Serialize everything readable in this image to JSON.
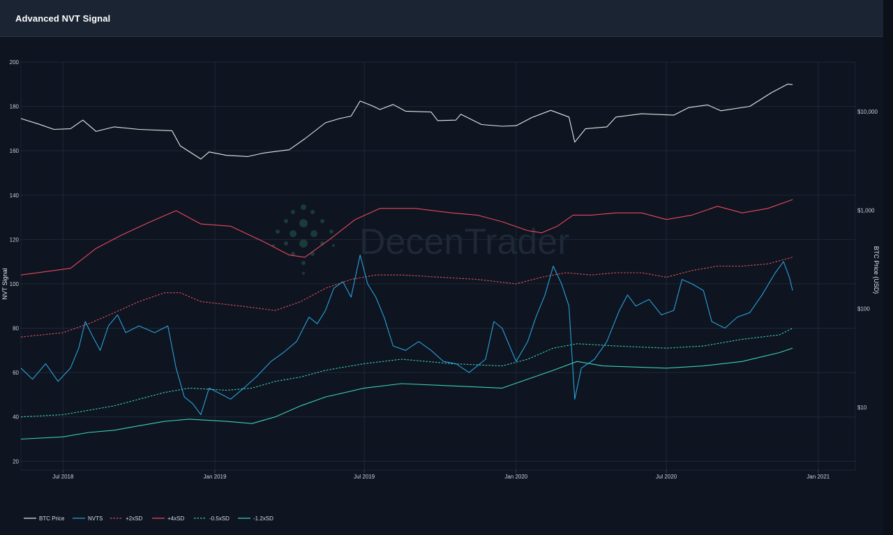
{
  "header": {
    "title": "Advanced NVT Signal"
  },
  "colors": {
    "background": "#0e1420",
    "header": "#1b2433",
    "grid": "#1f2938",
    "btc_price": "#e8e8e8",
    "nvts": "#2aa2dc",
    "plus2sd": "#e0525e",
    "plus4sd": "#e84a5f",
    "minus05sd": "#3fd1b6",
    "minus12sd": "#3fd1b6"
  },
  "watermark": {
    "text": "DecenTrader"
  },
  "chart_data": {
    "type": "line",
    "x_axis": {
      "range": [
        "2018-05-11",
        "2021-02-15"
      ],
      "ticks": [
        {
          "date": "2018-07-01",
          "label": "Jul 2018"
        },
        {
          "date": "2019-01-01",
          "label": "Jan 2019"
        },
        {
          "date": "2019-07-01",
          "label": "Jul 2019"
        },
        {
          "date": "2020-01-01",
          "label": "Jan 2020"
        },
        {
          "date": "2020-07-01",
          "label": "Jul 2020"
        },
        {
          "date": "2021-01-01",
          "label": "Jan 2021"
        }
      ]
    },
    "y_axis_left": {
      "title": "NVT Signal",
      "range": [
        16,
        200
      ],
      "ticks": [
        200,
        180,
        160,
        140,
        120,
        100,
        80,
        60,
        40,
        20
      ]
    },
    "y_axis_right": {
      "title": "BTC Price (USD)",
      "scale": "log",
      "ticks": [
        {
          "value": 10000,
          "label": "$10,000"
        },
        {
          "value": 1000,
          "label": "$1,000"
        },
        {
          "value": 100,
          "label": "$100"
        },
        {
          "value": 10,
          "label": "$10"
        }
      ]
    },
    "grid": true,
    "legend_position": "bottom-left",
    "series": [
      {
        "name": "BTC Price",
        "axis": "right",
        "style": "solid",
        "color": "#e8e8e8",
        "points": [
          [
            "2018-05-11",
            8500
          ],
          [
            "2018-06-01",
            7500
          ],
          [
            "2018-06-20",
            6600
          ],
          [
            "2018-07-10",
            6700
          ],
          [
            "2018-07-25",
            8200
          ],
          [
            "2018-08-10",
            6300
          ],
          [
            "2018-09-01",
            7000
          ],
          [
            "2018-10-01",
            6600
          ],
          [
            "2018-11-10",
            6400
          ],
          [
            "2018-11-20",
            4500
          ],
          [
            "2018-12-15",
            3300
          ],
          [
            "2018-12-25",
            3900
          ],
          [
            "2019-01-15",
            3600
          ],
          [
            "2019-02-10",
            3500
          ],
          [
            "2019-03-01",
            3800
          ],
          [
            "2019-04-01",
            4100
          ],
          [
            "2019-04-20",
            5300
          ],
          [
            "2019-05-15",
            7700
          ],
          [
            "2019-06-01",
            8500
          ],
          [
            "2019-06-15",
            9000
          ],
          [
            "2019-06-26",
            12800
          ],
          [
            "2019-07-10",
            11500
          ],
          [
            "2019-07-20",
            10500
          ],
          [
            "2019-08-05",
            11800
          ],
          [
            "2019-08-20",
            10100
          ],
          [
            "2019-09-20",
            9900
          ],
          [
            "2019-09-28",
            8100
          ],
          [
            "2019-10-20",
            8200
          ],
          [
            "2019-10-26",
            9400
          ],
          [
            "2019-11-20",
            7400
          ],
          [
            "2019-12-15",
            7100
          ],
          [
            "2020-01-01",
            7200
          ],
          [
            "2020-01-20",
            8700
          ],
          [
            "2020-02-12",
            10300
          ],
          [
            "2020-03-05",
            8800
          ],
          [
            "2020-03-12",
            4900
          ],
          [
            "2020-03-25",
            6700
          ],
          [
            "2020-04-20",
            7000
          ],
          [
            "2020-05-01",
            8800
          ],
          [
            "2020-06-01",
            9500
          ],
          [
            "2020-07-10",
            9200
          ],
          [
            "2020-07-28",
            11000
          ],
          [
            "2020-08-20",
            11700
          ],
          [
            "2020-09-05",
            10200
          ],
          [
            "2020-10-10",
            11300
          ],
          [
            "2020-10-21",
            12900
          ],
          [
            "2020-11-05",
            15500
          ],
          [
            "2020-11-25",
            19000
          ],
          [
            "2020-12-01",
            18800
          ]
        ]
      },
      {
        "name": "NVTS",
        "axis": "left",
        "style": "solid",
        "color": "#2aa2dc",
        "points": [
          [
            "2018-05-11",
            62
          ],
          [
            "2018-05-25",
            57
          ],
          [
            "2018-06-10",
            64
          ],
          [
            "2018-06-25",
            56
          ],
          [
            "2018-07-10",
            62
          ],
          [
            "2018-07-20",
            71
          ],
          [
            "2018-07-28",
            83
          ],
          [
            "2018-08-05",
            77
          ],
          [
            "2018-08-15",
            70
          ],
          [
            "2018-08-25",
            81
          ],
          [
            "2018-09-05",
            86
          ],
          [
            "2018-09-15",
            78
          ],
          [
            "2018-10-01",
            81
          ],
          [
            "2018-10-20",
            78
          ],
          [
            "2018-11-05",
            81
          ],
          [
            "2018-11-15",
            62
          ],
          [
            "2018-11-25",
            49
          ],
          [
            "2018-12-05",
            46
          ],
          [
            "2018-12-15",
            41
          ],
          [
            "2018-12-25",
            53
          ],
          [
            "2019-01-10",
            50
          ],
          [
            "2019-01-20",
            48
          ],
          [
            "2019-02-05",
            53
          ],
          [
            "2019-02-20",
            58
          ],
          [
            "2019-03-10",
            65
          ],
          [
            "2019-03-25",
            69
          ],
          [
            "2019-04-10",
            74
          ],
          [
            "2019-04-25",
            85
          ],
          [
            "2019-05-05",
            82
          ],
          [
            "2019-05-15",
            88
          ],
          [
            "2019-05-25",
            98
          ],
          [
            "2019-06-05",
            101
          ],
          [
            "2019-06-15",
            94
          ],
          [
            "2019-06-26",
            113
          ],
          [
            "2019-07-05",
            100
          ],
          [
            "2019-07-15",
            94
          ],
          [
            "2019-07-25",
            85
          ],
          [
            "2019-08-05",
            72
          ],
          [
            "2019-08-20",
            70
          ],
          [
            "2019-09-05",
            74
          ],
          [
            "2019-09-20",
            70
          ],
          [
            "2019-10-05",
            65
          ],
          [
            "2019-10-20",
            64
          ],
          [
            "2019-11-05",
            60
          ],
          [
            "2019-11-25",
            66
          ],
          [
            "2019-12-05",
            83
          ],
          [
            "2019-12-15",
            80
          ],
          [
            "2020-01-01",
            65
          ],
          [
            "2020-01-15",
            74
          ],
          [
            "2020-01-25",
            85
          ],
          [
            "2020-02-05",
            95
          ],
          [
            "2020-02-15",
            108
          ],
          [
            "2020-02-25",
            100
          ],
          [
            "2020-03-05",
            90
          ],
          [
            "2020-03-12",
            48
          ],
          [
            "2020-03-20",
            62
          ],
          [
            "2020-04-05",
            66
          ],
          [
            "2020-04-20",
            74
          ],
          [
            "2020-05-05",
            88
          ],
          [
            "2020-05-15",
            95
          ],
          [
            "2020-05-25",
            90
          ],
          [
            "2020-06-10",
            93
          ],
          [
            "2020-06-25",
            86
          ],
          [
            "2020-07-10",
            88
          ],
          [
            "2020-07-20",
            102
          ],
          [
            "2020-08-01",
            100
          ],
          [
            "2020-08-15",
            97
          ],
          [
            "2020-08-25",
            83
          ],
          [
            "2020-09-10",
            80
          ],
          [
            "2020-09-25",
            85
          ],
          [
            "2020-10-10",
            87
          ],
          [
            "2020-10-25",
            95
          ],
          [
            "2020-11-10",
            105
          ],
          [
            "2020-11-20",
            110
          ],
          [
            "2020-11-27",
            103
          ],
          [
            "2020-12-01",
            97
          ]
        ]
      },
      {
        "name": "+2xSD",
        "axis": "left",
        "style": "dashed",
        "color": "#e0525e",
        "points": [
          [
            "2018-05-11",
            76
          ],
          [
            "2018-07-01",
            78
          ],
          [
            "2018-08-01",
            82
          ],
          [
            "2018-09-01",
            87
          ],
          [
            "2018-10-01",
            92
          ],
          [
            "2018-11-01",
            96
          ],
          [
            "2018-11-20",
            96
          ],
          [
            "2018-12-15",
            92
          ],
          [
            "2019-02-01",
            90
          ],
          [
            "2019-03-15",
            88
          ],
          [
            "2019-04-15",
            92
          ],
          [
            "2019-05-15",
            98
          ],
          [
            "2019-06-15",
            102
          ],
          [
            "2019-07-15",
            104
          ],
          [
            "2019-08-15",
            104
          ],
          [
            "2019-10-01",
            103
          ],
          [
            "2019-11-15",
            102
          ],
          [
            "2020-01-01",
            100
          ],
          [
            "2020-02-01",
            103
          ],
          [
            "2020-03-01",
            105
          ],
          [
            "2020-04-01",
            104
          ],
          [
            "2020-05-01",
            105
          ],
          [
            "2020-06-01",
            105
          ],
          [
            "2020-07-01",
            103
          ],
          [
            "2020-08-01",
            106
          ],
          [
            "2020-09-01",
            108
          ],
          [
            "2020-10-01",
            108
          ],
          [
            "2020-11-01",
            109
          ],
          [
            "2020-12-01",
            112
          ]
        ]
      },
      {
        "name": "+4xSD",
        "axis": "left",
        "style": "solid",
        "color": "#e84a5f",
        "points": [
          [
            "2018-05-11",
            104
          ],
          [
            "2018-07-10",
            107
          ],
          [
            "2018-08-10",
            116
          ],
          [
            "2018-09-10",
            122
          ],
          [
            "2018-10-15",
            128
          ],
          [
            "2018-11-15",
            133
          ],
          [
            "2018-12-15",
            127
          ],
          [
            "2019-01-20",
            126
          ],
          [
            "2019-03-01",
            119
          ],
          [
            "2019-04-01",
            113
          ],
          [
            "2019-04-20",
            112
          ],
          [
            "2019-05-20",
            120
          ],
          [
            "2019-06-20",
            129
          ],
          [
            "2019-07-20",
            134
          ],
          [
            "2019-09-01",
            134
          ],
          [
            "2019-10-15",
            132
          ],
          [
            "2019-11-15",
            131
          ],
          [
            "2019-12-15",
            128
          ],
          [
            "2020-01-15",
            124
          ],
          [
            "2020-02-01",
            123
          ],
          [
            "2020-02-20",
            126
          ],
          [
            "2020-03-10",
            131
          ],
          [
            "2020-04-01",
            131
          ],
          [
            "2020-05-01",
            132
          ],
          [
            "2020-06-01",
            132
          ],
          [
            "2020-07-01",
            129
          ],
          [
            "2020-08-01",
            131
          ],
          [
            "2020-09-01",
            135
          ],
          [
            "2020-10-01",
            132
          ],
          [
            "2020-11-01",
            134
          ],
          [
            "2020-12-01",
            138
          ]
        ]
      },
      {
        "name": "-0.5xSD",
        "axis": "left",
        "style": "dashed",
        "color": "#3fd1b6",
        "points": [
          [
            "2018-05-11",
            40
          ],
          [
            "2018-07-01",
            41
          ],
          [
            "2018-08-01",
            43
          ],
          [
            "2018-09-01",
            45
          ],
          [
            "2018-10-01",
            48
          ],
          [
            "2018-11-01",
            51
          ],
          [
            "2018-12-01",
            53
          ],
          [
            "2019-01-15",
            52
          ],
          [
            "2019-02-15",
            53
          ],
          [
            "2019-03-15",
            56
          ],
          [
            "2019-04-15",
            58
          ],
          [
            "2019-05-15",
            61
          ],
          [
            "2019-07-01",
            64
          ],
          [
            "2019-08-15",
            66
          ],
          [
            "2019-10-15",
            64
          ],
          [
            "2019-12-15",
            63
          ],
          [
            "2020-01-15",
            66
          ],
          [
            "2020-02-15",
            71
          ],
          [
            "2020-03-15",
            73
          ],
          [
            "2020-05-01",
            72
          ],
          [
            "2020-07-01",
            71
          ],
          [
            "2020-08-15",
            72
          ],
          [
            "2020-10-01",
            75
          ],
          [
            "2020-11-15",
            77
          ],
          [
            "2020-12-01",
            80
          ]
        ]
      },
      {
        "name": "-1.2xSD",
        "axis": "left",
        "style": "solid",
        "color": "#3fd1b6",
        "points": [
          [
            "2018-05-11",
            30
          ],
          [
            "2018-07-01",
            31
          ],
          [
            "2018-08-01",
            33
          ],
          [
            "2018-09-01",
            34
          ],
          [
            "2018-10-01",
            36
          ],
          [
            "2018-11-01",
            38
          ],
          [
            "2018-12-01",
            39
          ],
          [
            "2019-01-15",
            38
          ],
          [
            "2019-02-15",
            37
          ],
          [
            "2019-03-15",
            40
          ],
          [
            "2019-04-15",
            45
          ],
          [
            "2019-05-15",
            49
          ],
          [
            "2019-07-01",
            53
          ],
          [
            "2019-08-15",
            55
          ],
          [
            "2019-10-15",
            54
          ],
          [
            "2019-12-15",
            53
          ],
          [
            "2020-01-15",
            57
          ],
          [
            "2020-02-15",
            61
          ],
          [
            "2020-03-15",
            65
          ],
          [
            "2020-04-15",
            63
          ],
          [
            "2020-07-01",
            62
          ],
          [
            "2020-08-15",
            63
          ],
          [
            "2020-10-01",
            65
          ],
          [
            "2020-11-15",
            69
          ],
          [
            "2020-12-01",
            71
          ]
        ]
      }
    ]
  }
}
